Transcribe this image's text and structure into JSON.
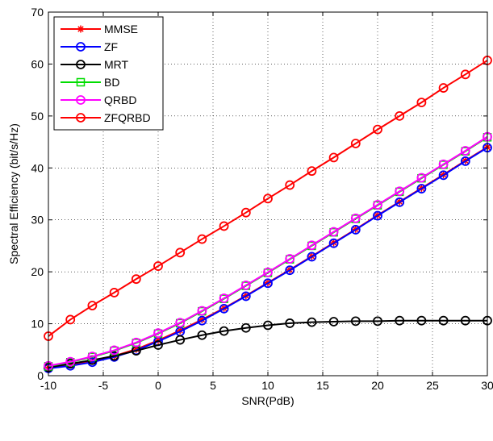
{
  "chart_data": {
    "type": "line",
    "title": "",
    "xlabel": "SNR(PdB)",
    "ylabel": "Spectral Efficiency (bit/s/Hz)",
    "xlim": [
      -10,
      30
    ],
    "ylim": [
      0,
      70
    ],
    "xticks": [
      -10,
      -5,
      0,
      5,
      10,
      15,
      20,
      25,
      30
    ],
    "yticks": [
      0,
      10,
      20,
      30,
      40,
      50,
      60,
      70
    ],
    "xtick_labels": [
      "-10",
      "-5",
      "0",
      "5",
      "10",
      "15",
      "20",
      "25",
      "30"
    ],
    "ytick_labels": [
      "0",
      "10",
      "20",
      "30",
      "40",
      "50",
      "60",
      "70"
    ],
    "grid": true,
    "grid_style": "dotted",
    "legend_position": "top-left",
    "x": [
      -10,
      -8,
      -6,
      -4,
      -2,
      0,
      2,
      4,
      6,
      8,
      10,
      12,
      14,
      16,
      18,
      20,
      22,
      24,
      26,
      28,
      30
    ],
    "series": [
      {
        "name": "MMSE",
        "color": "#ff0000",
        "marker": "star",
        "values": [
          1.6,
          2.1,
          2.8,
          3.8,
          5.1,
          6.8,
          8.7,
          10.8,
          13.0,
          15.4,
          17.9,
          20.4,
          23.0,
          25.6,
          28.2,
          30.9,
          33.5,
          36.1,
          38.7,
          41.4,
          44.0
        ]
      },
      {
        "name": "ZF",
        "color": "#0000ff",
        "marker": "circle",
        "values": [
          1.4,
          1.9,
          2.6,
          3.6,
          4.9,
          6.6,
          8.5,
          10.6,
          12.9,
          15.3,
          17.8,
          20.3,
          22.9,
          25.5,
          28.1,
          30.8,
          33.4,
          36.0,
          38.6,
          41.3,
          43.9
        ]
      },
      {
        "name": "MRT",
        "color": "#000000",
        "marker": "circle",
        "values": [
          1.6,
          2.3,
          3.0,
          3.8,
          4.8,
          5.9,
          6.9,
          7.8,
          8.6,
          9.2,
          9.7,
          10.1,
          10.3,
          10.4,
          10.5,
          10.5,
          10.6,
          10.6,
          10.6,
          10.6,
          10.6
        ]
      },
      {
        "name": "BD",
        "color": "#00dd00",
        "marker": "square",
        "values": [
          1.8,
          2.6,
          3.6,
          4.8,
          6.3,
          8.1,
          10.1,
          12.4,
          14.8,
          17.3,
          19.8,
          22.4,
          25.0,
          27.6,
          30.2,
          32.8,
          35.4,
          38.0,
          40.6,
          43.2,
          45.9
        ]
      },
      {
        "name": "QRBD",
        "color": "#ff00ff",
        "marker": "circle",
        "values": [
          1.9,
          2.7,
          3.7,
          4.9,
          6.4,
          8.2,
          10.2,
          12.5,
          14.9,
          17.4,
          19.9,
          22.5,
          25.1,
          27.7,
          30.3,
          32.9,
          35.5,
          38.1,
          40.7,
          43.3,
          46.0
        ]
      },
      {
        "name": "ZFQRBD",
        "color": "#ff0000",
        "marker": "circle",
        "values": [
          7.6,
          10.8,
          13.5,
          16.0,
          18.6,
          21.1,
          23.7,
          26.3,
          28.8,
          31.4,
          34.1,
          36.7,
          39.4,
          42.0,
          44.7,
          47.4,
          50.0,
          52.6,
          55.4,
          58.0,
          60.7
        ]
      }
    ]
  }
}
